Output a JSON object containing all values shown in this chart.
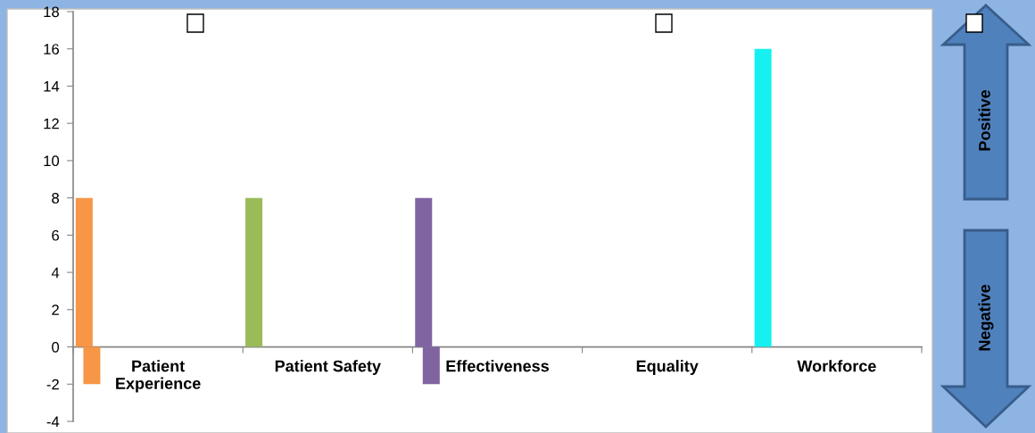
{
  "chart_data": {
    "type": "bar",
    "categories": [
      "Patient Experience",
      "Patient Safety",
      "Effectiveness",
      "Equality",
      "Workforce"
    ],
    "series": [
      {
        "colors": [
          "#f79646",
          "#9bbb59",
          "#8064a2",
          null,
          "#17f0f0"
        ],
        "values": [
          8,
          8,
          8,
          null,
          16
        ]
      },
      {
        "colors": [
          "#f79646",
          null,
          "#8064a2",
          null,
          null
        ],
        "values": [
          -2,
          null,
          -2,
          null,
          null
        ]
      }
    ],
    "ylim": [
      -4,
      18
    ],
    "yticks": [
      -4,
      -2,
      0,
      2,
      4,
      6,
      8,
      10,
      12,
      14,
      16,
      18
    ],
    "grid": false,
    "legend": false,
    "annotations": [
      "Positive",
      "Negative"
    ]
  }
}
